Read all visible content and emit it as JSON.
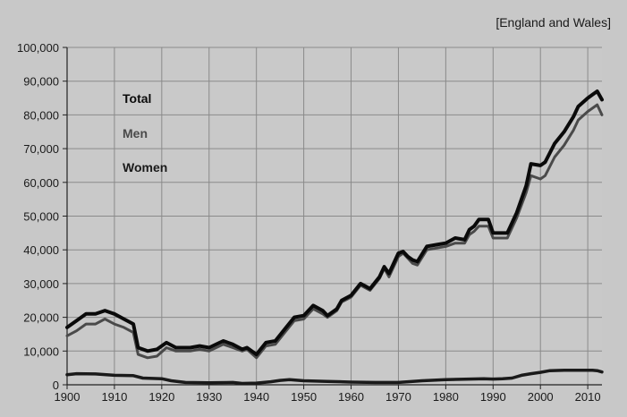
{
  "chart_data": {
    "type": "line",
    "subtitle": "[England and Wales]",
    "xlabel": "",
    "ylabel": "",
    "xlim": [
      1900,
      2013
    ],
    "ylim": [
      0,
      100000
    ],
    "x_ticks": [
      "1900",
      "1910",
      "1920",
      "1930",
      "1940",
      "1950",
      "1960",
      "1970",
      "1980",
      "1990",
      "2000",
      "2010"
    ],
    "y_ticks": [
      "0",
      "10,000",
      "20,000",
      "30,000",
      "40,000",
      "50,000",
      "60,000",
      "70,000",
      "80,000",
      "90,000",
      "100,000"
    ],
    "grid": true,
    "legend_position": "top-left",
    "series": [
      {
        "name": "Total",
        "color": "#0a0a0a",
        "points": [
          [
            1900,
            17000
          ],
          [
            1902,
            19000
          ],
          [
            1904,
            21000
          ],
          [
            1906,
            21000
          ],
          [
            1908,
            22000
          ],
          [
            1910,
            21000
          ],
          [
            1912,
            19500
          ],
          [
            1914,
            18000
          ],
          [
            1915,
            11000
          ],
          [
            1917,
            10000
          ],
          [
            1919,
            10500
          ],
          [
            1921,
            12500
          ],
          [
            1923,
            11000
          ],
          [
            1926,
            11000
          ],
          [
            1928,
            11500
          ],
          [
            1930,
            11000
          ],
          [
            1933,
            13000
          ],
          [
            1935,
            12000
          ],
          [
            1937,
            10500
          ],
          [
            1938,
            11000
          ],
          [
            1940,
            9000
          ],
          [
            1942,
            12500
          ],
          [
            1944,
            13000
          ],
          [
            1946,
            16500
          ],
          [
            1948,
            20000
          ],
          [
            1950,
            20500
          ],
          [
            1952,
            23500
          ],
          [
            1954,
            22000
          ],
          [
            1955,
            20500
          ],
          [
            1957,
            22500
          ],
          [
            1958,
            25000
          ],
          [
            1960,
            26500
          ],
          [
            1962,
            30000
          ],
          [
            1964,
            28500
          ],
          [
            1966,
            32000
          ],
          [
            1967,
            35000
          ],
          [
            1968,
            33000
          ],
          [
            1970,
            39000
          ],
          [
            1971,
            39500
          ],
          [
            1972,
            38000
          ],
          [
            1973,
            37000
          ],
          [
            1974,
            36500
          ],
          [
            1976,
            41000
          ],
          [
            1978,
            41500
          ],
          [
            1980,
            42000
          ],
          [
            1982,
            43500
          ],
          [
            1984,
            43000
          ],
          [
            1985,
            46000
          ],
          [
            1986,
            47000
          ],
          [
            1987,
            49000
          ],
          [
            1989,
            49000
          ],
          [
            1990,
            45000
          ],
          [
            1993,
            45000
          ],
          [
            1995,
            51000
          ],
          [
            1997,
            59000
          ],
          [
            1998,
            65500
          ],
          [
            2000,
            65000
          ],
          [
            2001,
            66000
          ],
          [
            2003,
            71500
          ],
          [
            2005,
            75000
          ],
          [
            2007,
            79500
          ],
          [
            2008,
            82500
          ],
          [
            2010,
            85000
          ],
          [
            2011,
            86000
          ],
          [
            2012,
            87000
          ],
          [
            2013,
            84500
          ]
        ]
      },
      {
        "name": "Men",
        "color": "#4a4a4a",
        "points": [
          [
            1900,
            14500
          ],
          [
            1902,
            16000
          ],
          [
            1904,
            18000
          ],
          [
            1906,
            18000
          ],
          [
            1908,
            19500
          ],
          [
            1910,
            18000
          ],
          [
            1912,
            17000
          ],
          [
            1914,
            15500
          ],
          [
            1915,
            9000
          ],
          [
            1917,
            8000
          ],
          [
            1919,
            8500
          ],
          [
            1921,
            11000
          ],
          [
            1923,
            10000
          ],
          [
            1926,
            10000
          ],
          [
            1928,
            10500
          ],
          [
            1930,
            10000
          ],
          [
            1933,
            12000
          ],
          [
            1935,
            11000
          ],
          [
            1937,
            10000
          ],
          [
            1938,
            10500
          ],
          [
            1940,
            8000
          ],
          [
            1942,
            11500
          ],
          [
            1944,
            12000
          ],
          [
            1946,
            15500
          ],
          [
            1948,
            19000
          ],
          [
            1950,
            19500
          ],
          [
            1952,
            22500
          ],
          [
            1954,
            21000
          ],
          [
            1955,
            20000
          ],
          [
            1957,
            22000
          ],
          [
            1958,
            24500
          ],
          [
            1960,
            26000
          ],
          [
            1962,
            29500
          ],
          [
            1964,
            28000
          ],
          [
            1966,
            31500
          ],
          [
            1967,
            34500
          ],
          [
            1968,
            32000
          ],
          [
            1970,
            38000
          ],
          [
            1971,
            39000
          ],
          [
            1972,
            37500
          ],
          [
            1973,
            36000
          ],
          [
            1974,
            35500
          ],
          [
            1976,
            40000
          ],
          [
            1978,
            40500
          ],
          [
            1980,
            41000
          ],
          [
            1982,
            42000
          ],
          [
            1984,
            42000
          ],
          [
            1985,
            44500
          ],
          [
            1986,
            45500
          ],
          [
            1987,
            47000
          ],
          [
            1989,
            47000
          ],
          [
            1990,
            43500
          ],
          [
            1993,
            43500
          ],
          [
            1995,
            49500
          ],
          [
            1997,
            57000
          ],
          [
            1998,
            62000
          ],
          [
            2000,
            61000
          ],
          [
            2001,
            62000
          ],
          [
            2003,
            67500
          ],
          [
            2005,
            71000
          ],
          [
            2007,
            75500
          ],
          [
            2008,
            78500
          ],
          [
            2010,
            81000
          ],
          [
            2011,
            82000
          ],
          [
            2012,
            83000
          ],
          [
            2013,
            80000
          ]
        ]
      },
      {
        "name": "Women",
        "color": "#1a1a1a",
        "points": [
          [
            1900,
            3000
          ],
          [
            1902,
            3300
          ],
          [
            1906,
            3200
          ],
          [
            1910,
            2800
          ],
          [
            1914,
            2700
          ],
          [
            1916,
            2000
          ],
          [
            1920,
            1800
          ],
          [
            1922,
            1200
          ],
          [
            1925,
            700
          ],
          [
            1930,
            600
          ],
          [
            1935,
            700
          ],
          [
            1937,
            400
          ],
          [
            1940,
            500
          ],
          [
            1943,
            900
          ],
          [
            1945,
            1300
          ],
          [
            1947,
            1500
          ],
          [
            1950,
            1200
          ],
          [
            1955,
            1000
          ],
          [
            1960,
            800
          ],
          [
            1965,
            700
          ],
          [
            1970,
            700
          ],
          [
            1975,
            1200
          ],
          [
            1980,
            1500
          ],
          [
            1985,
            1700
          ],
          [
            1988,
            1800
          ],
          [
            1990,
            1700
          ],
          [
            1992,
            1800
          ],
          [
            1994,
            2000
          ],
          [
            1996,
            2800
          ],
          [
            1998,
            3300
          ],
          [
            2000,
            3700
          ],
          [
            2002,
            4200
          ],
          [
            2005,
            4300
          ],
          [
            2008,
            4300
          ],
          [
            2011,
            4300
          ],
          [
            2012,
            4200
          ],
          [
            2013,
            3800
          ]
        ]
      }
    ]
  }
}
